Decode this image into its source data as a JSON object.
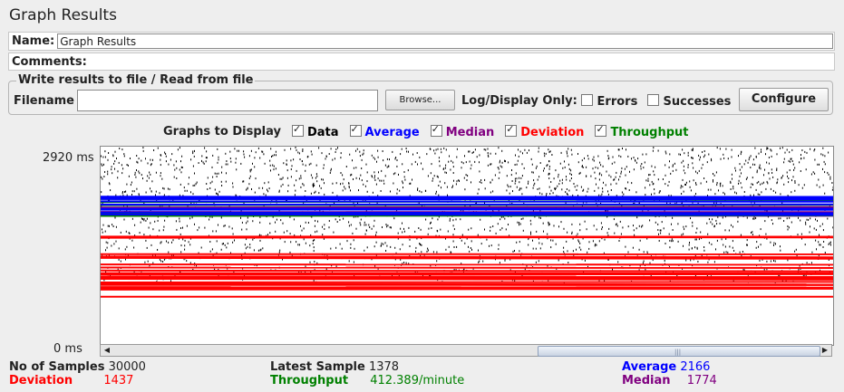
{
  "title": "Graph Results",
  "name": {
    "label": "Name:",
    "value": "Graph Results"
  },
  "comments": {
    "label": "Comments:",
    "value": ""
  },
  "file": {
    "legend": "Write results to file / Read from file",
    "filename_label": "Filename",
    "filename_value": "",
    "browse_label": "Browse...",
    "log_display_label": "Log/Display Only:",
    "errors_label": "Errors",
    "errors_checked": false,
    "successes_label": "Successes",
    "successes_checked": false,
    "configure_label": "Configure"
  },
  "graphs": {
    "label": "Graphs to Display",
    "items": [
      {
        "label": "Data",
        "color": "#000000",
        "checked": true
      },
      {
        "label": "Average",
        "color": "#0000ff",
        "checked": true
      },
      {
        "label": "Median",
        "color": "#800080",
        "checked": true
      },
      {
        "label": "Deviation",
        "color": "#ff0000",
        "checked": true
      },
      {
        "label": "Throughput",
        "color": "#008000",
        "checked": true
      }
    ]
  },
  "axis": {
    "top": "2920 ms",
    "bottom": "0 ms"
  },
  "stats": {
    "samples_label": "No of Samples",
    "samples_value": "30000",
    "latest_label": "Latest Sample",
    "latest_value": "1378",
    "average_label": "Average",
    "average_value": "2166",
    "deviation_label": "Deviation",
    "deviation_value": "1437",
    "throughput_label": "Throughput",
    "throughput_value": "412.389/minute",
    "median_label": "Median",
    "median_value": "1774"
  },
  "chart_data": {
    "type": "scatter",
    "ylim": [
      0,
      2920
    ],
    "y_unit": "ms",
    "summary": {
      "average_ms": 2166,
      "median_ms": 1774,
      "deviation_ms": 1437,
      "throughput_per_minute": 412.389
    },
    "series_colors": {
      "Data": "#000000",
      "Average": "#0000ff",
      "Median": "#800080",
      "Deviation": "#ff0000",
      "Throughput": "#008000"
    }
  }
}
